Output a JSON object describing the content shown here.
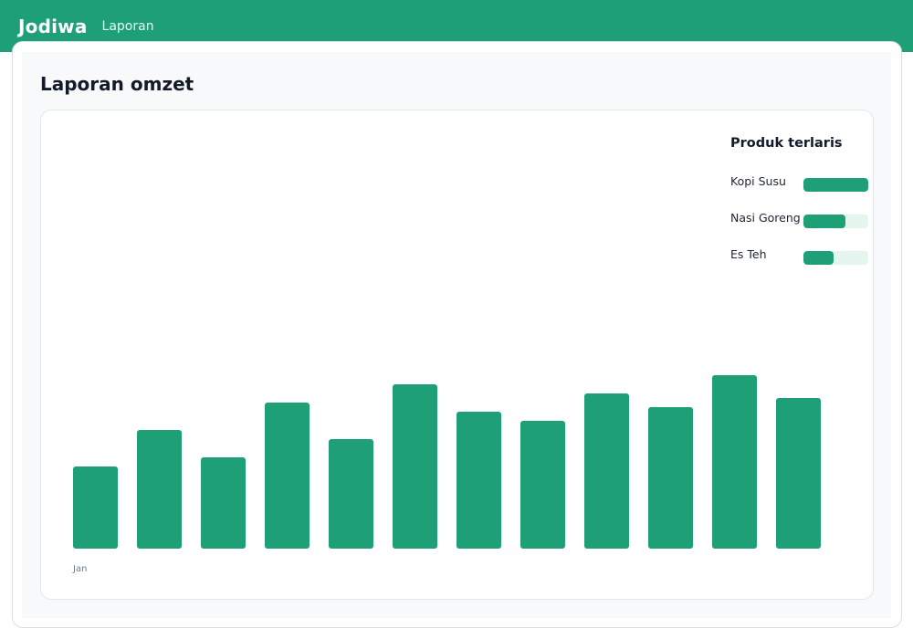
{
  "app": {
    "brand": "Jodiwa",
    "nav_item": "Laporan"
  },
  "page": {
    "title": "Laporan omzet"
  },
  "top_products": {
    "title": "Produk terlaris",
    "items": [
      {
        "name": "Kopi Susu",
        "share": 1.0
      },
      {
        "name": "Nasi Goreng",
        "share": 0.65
      },
      {
        "name": "Es Teh",
        "share": 0.47
      }
    ]
  },
  "colors": {
    "accent": "#1e9f75",
    "track": "#e5f6ef"
  },
  "chart_data": {
    "type": "bar",
    "categories": [
      "Jan",
      "",
      "",
      "",
      "",
      "",
      "",
      "",
      "",
      "",
      "",
      ""
    ],
    "values": [
      90,
      130,
      100,
      160,
      120,
      180,
      150,
      140,
      170,
      155,
      190,
      165
    ],
    "ylim": [
      0,
      200
    ],
    "grid": false
  }
}
